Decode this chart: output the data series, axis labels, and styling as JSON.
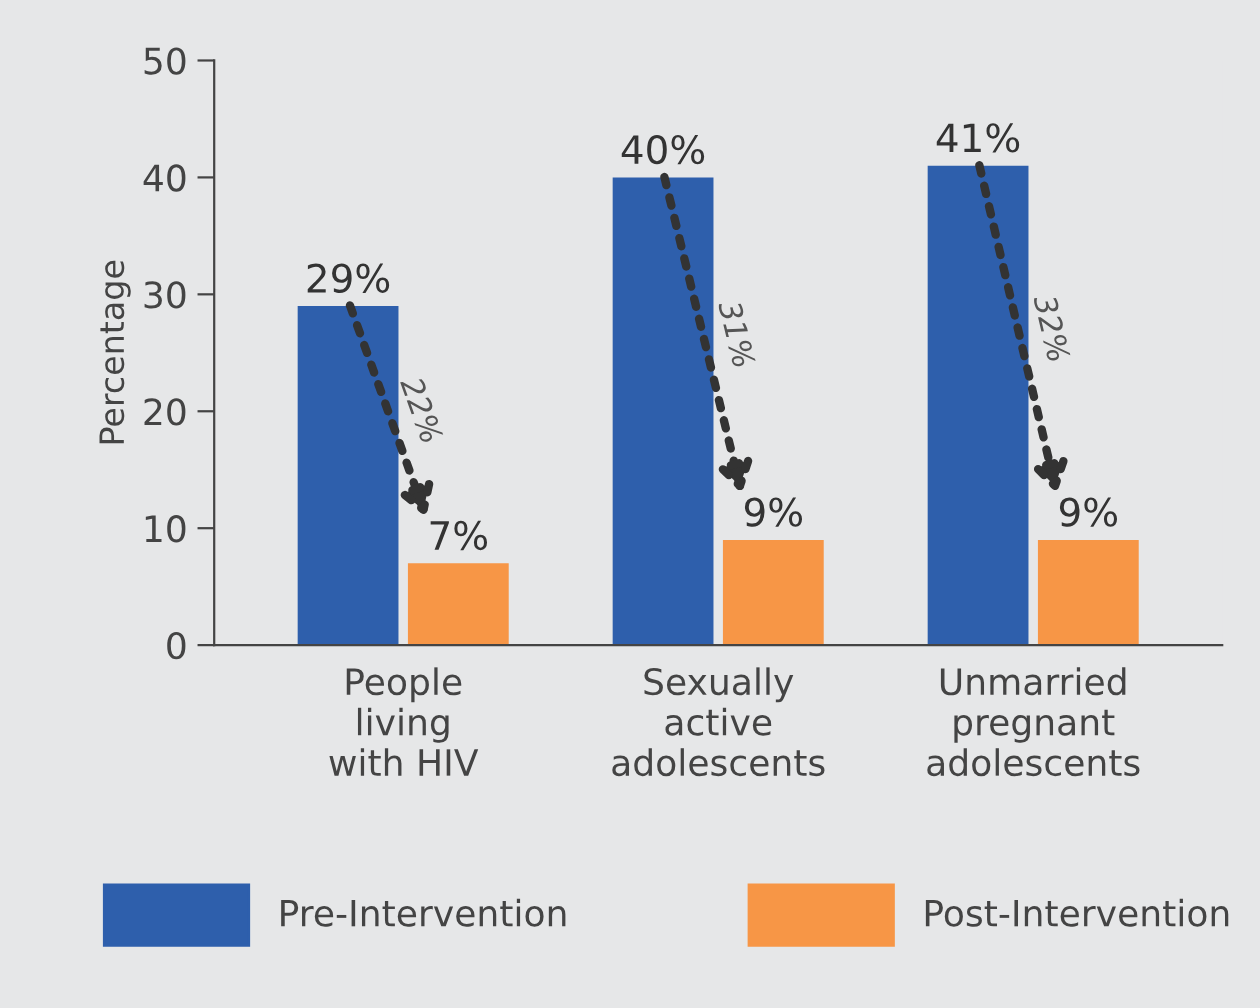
{
  "chart_data": {
    "type": "bar",
    "ylabel": "Percentage",
    "categories": [
      "People\nliving\nwith HIV",
      "Sexually\nactive\nadolescents",
      "Unmarried\npregnant\nadolescents"
    ],
    "series": [
      {
        "name": "Pre-Intervention",
        "color": "#2e5fac",
        "values": [
          29,
          40,
          41
        ],
        "value_labels": [
          "29%",
          "40%",
          "41%"
        ]
      },
      {
        "name": "Post-Intervention",
        "color": "#f79646",
        "values": [
          7,
          9,
          9
        ],
        "value_labels": [
          "7%",
          "9%",
          "9%"
        ]
      }
    ],
    "annotations": [
      "22%",
      "31%",
      "32%"
    ],
    "ylim": [
      0,
      50
    ],
    "yticks": [
      0,
      10,
      20,
      30,
      40,
      50
    ],
    "grid": false,
    "legend": "bottom"
  }
}
